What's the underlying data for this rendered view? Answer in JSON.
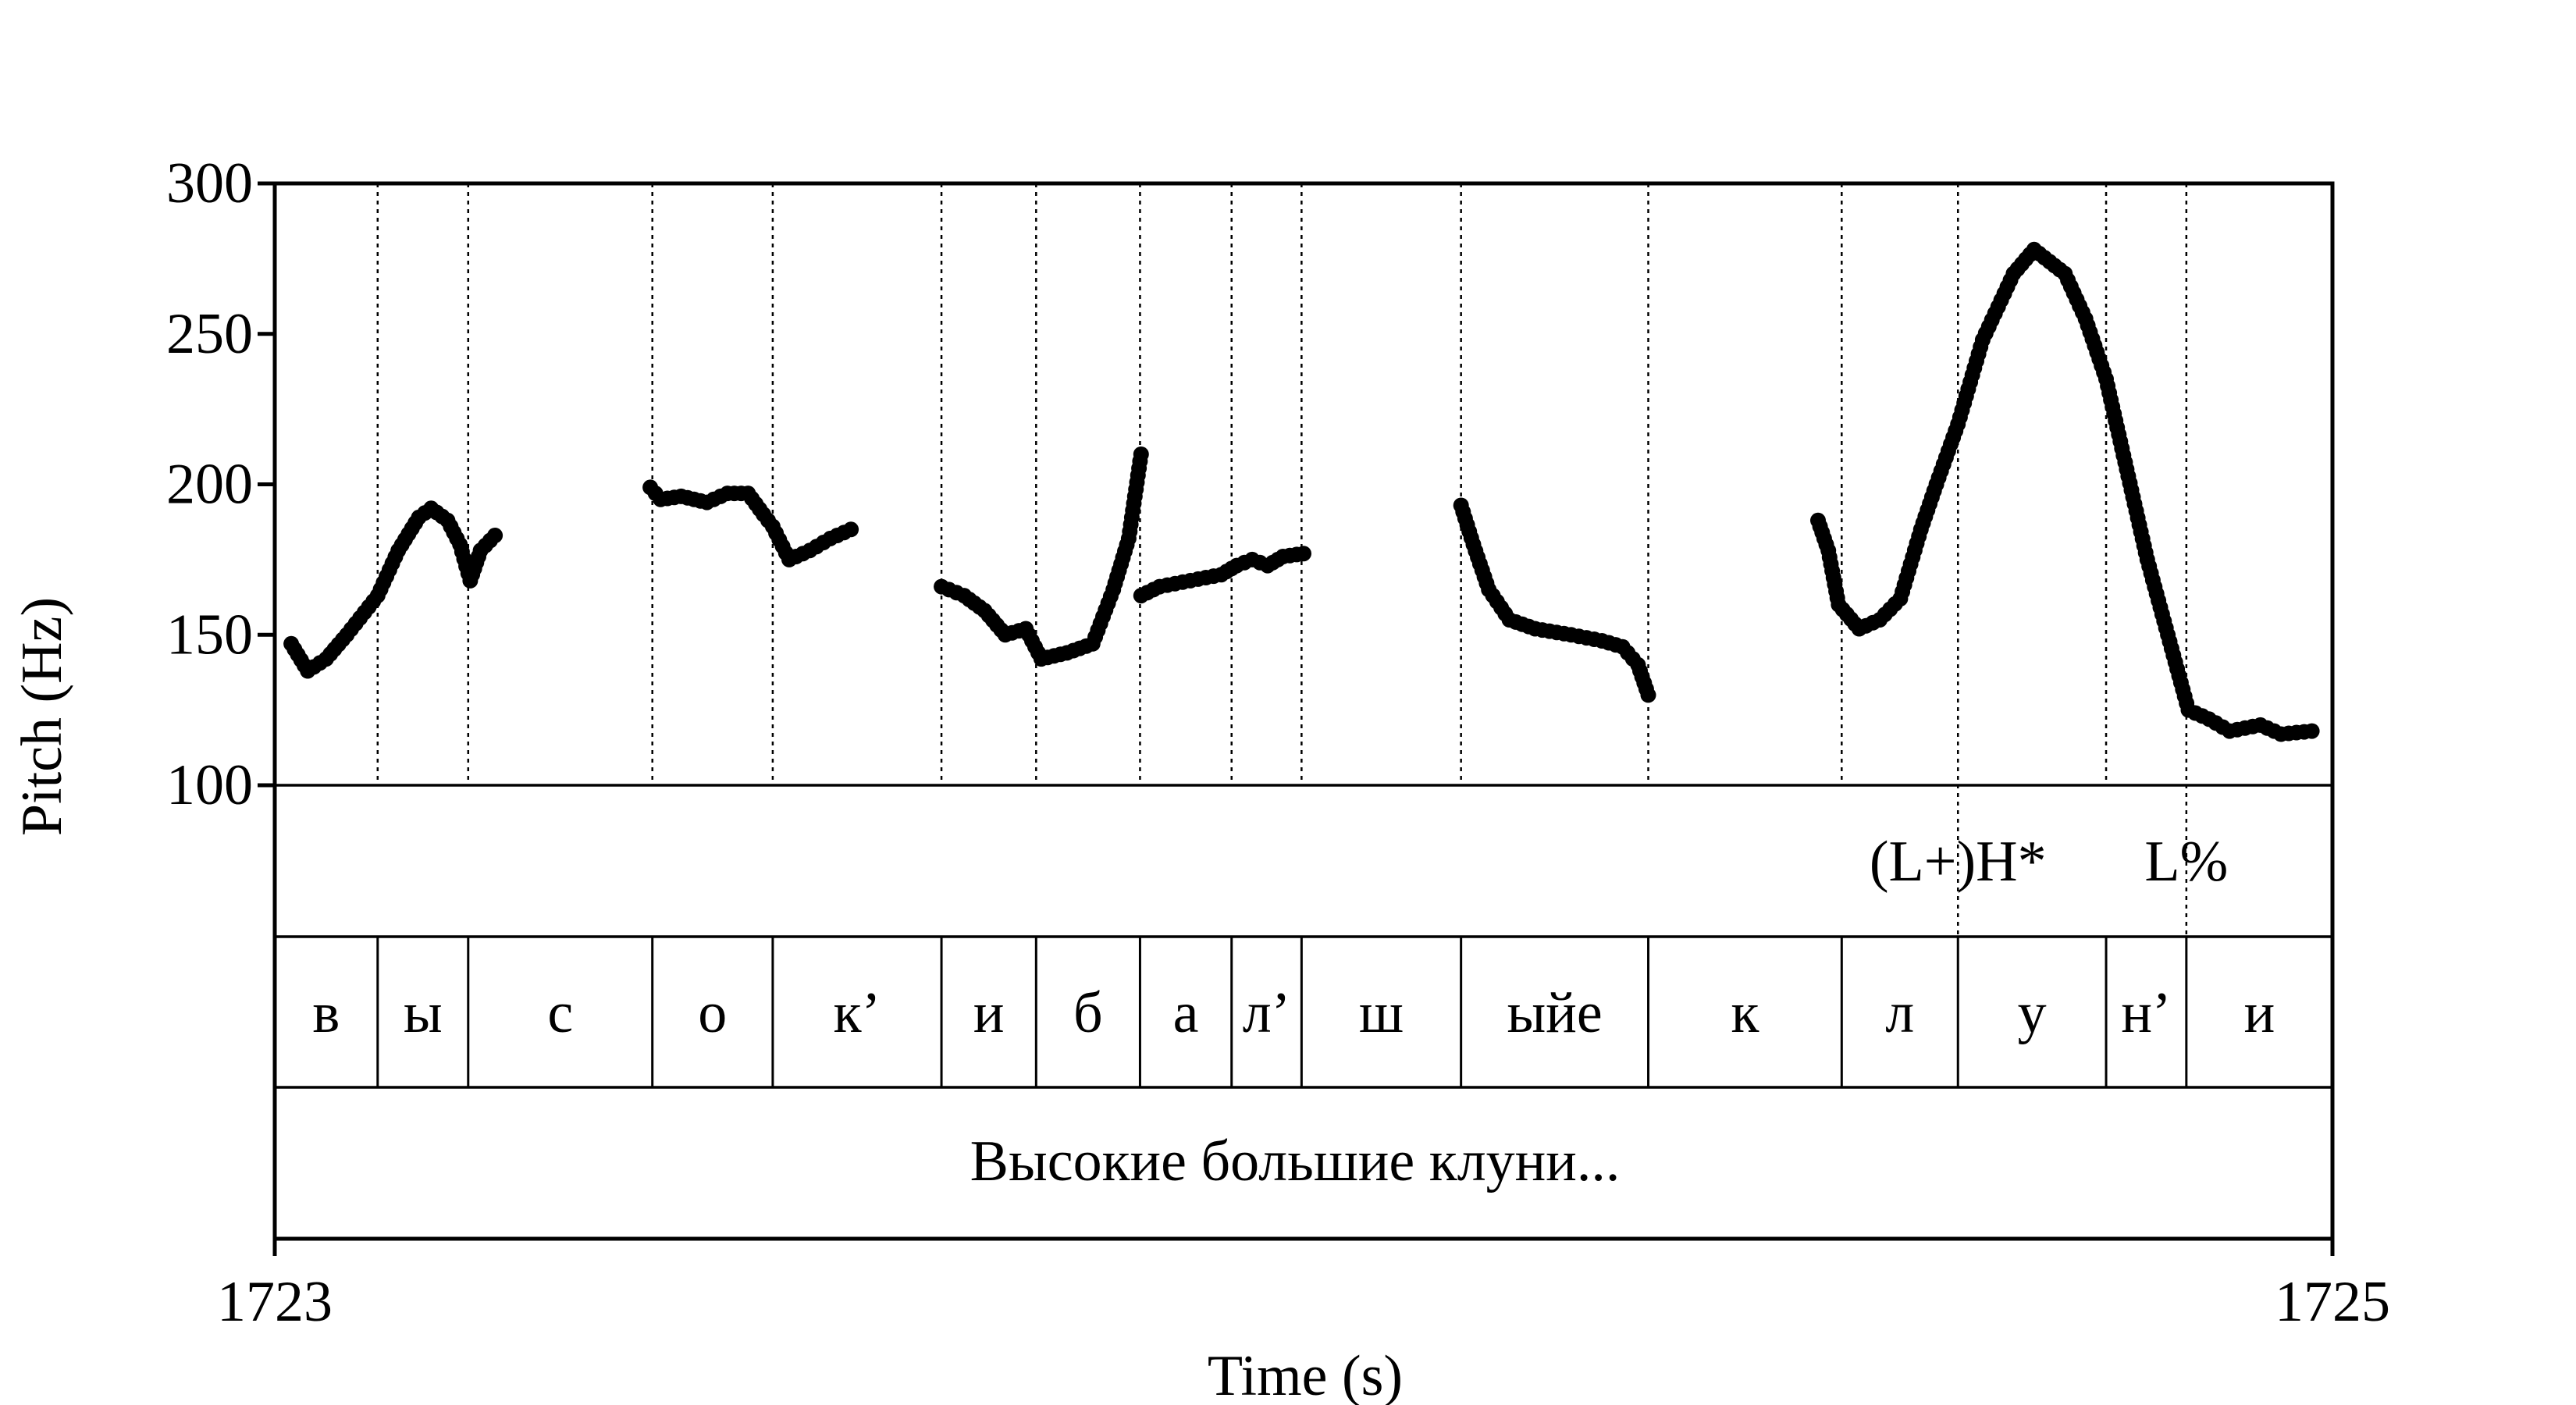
{
  "chart_data": {
    "type": "scatter",
    "title": "",
    "xlabel": "Time (s)",
    "ylabel": "Pitch (Hz)",
    "xlim": [
      1723,
      1725
    ],
    "ylim": [
      100,
      300
    ],
    "x_tick_labels": [
      "1723",
      "1725"
    ],
    "y_ticks": [
      100,
      150,
      200,
      250,
      300
    ],
    "y_tick_labels": [
      "100",
      "150",
      "200",
      "250",
      "300"
    ],
    "grid": false,
    "legend": "none",
    "marker_color": "#000000",
    "boundaries": [
      1723.1,
      1723.188,
      1723.367,
      1723.484,
      1723.648,
      1723.74,
      1723.841,
      1723.93,
      1723.998,
      1724.153,
      1724.335,
      1724.523,
      1724.636,
      1724.78,
      1724.858
    ],
    "tones": [
      {
        "label": "(L+)H*",
        "time": 1724.636
      },
      {
        "label": "L%",
        "time": 1724.858
      }
    ],
    "segments": [
      {
        "label": "в",
        "start": 1723.0,
        "end": 1723.1
      },
      {
        "label": "ы",
        "start": 1723.1,
        "end": 1723.188
      },
      {
        "label": "с",
        "start": 1723.188,
        "end": 1723.367
      },
      {
        "label": "о",
        "start": 1723.367,
        "end": 1723.484
      },
      {
        "label": "к’",
        "start": 1723.484,
        "end": 1723.648
      },
      {
        "label": "и",
        "start": 1723.648,
        "end": 1723.74
      },
      {
        "label": "б",
        "start": 1723.74,
        "end": 1723.841
      },
      {
        "label": "а",
        "start": 1723.841,
        "end": 1723.93
      },
      {
        "label": "л’",
        "start": 1723.93,
        "end": 1723.998
      },
      {
        "label": "ш",
        "start": 1723.998,
        "end": 1724.153
      },
      {
        "label": "ыйе",
        "start": 1724.153,
        "end": 1724.335
      },
      {
        "label": "к",
        "start": 1724.335,
        "end": 1724.523
      },
      {
        "label": "л",
        "start": 1724.523,
        "end": 1724.636
      },
      {
        "label": "у",
        "start": 1724.636,
        "end": 1724.78
      },
      {
        "label": "н’",
        "start": 1724.78,
        "end": 1724.858
      },
      {
        "label": "и",
        "start": 1724.858,
        "end": 1725.0
      }
    ],
    "sentence": "Высокие большие клуни...",
    "pitch_anchors": [
      [
        [
          1723.016,
          147
        ],
        [
          1723.032,
          138
        ],
        [
          1723.05,
          142
        ],
        [
          1723.07,
          150
        ],
        [
          1723.1,
          163
        ],
        [
          1723.12,
          178
        ],
        [
          1723.14,
          189
        ],
        [
          1723.152,
          192
        ],
        [
          1723.168,
          188
        ],
        [
          1723.18,
          180
        ],
        [
          1723.19,
          168
        ],
        [
          1723.2,
          178
        ],
        [
          1723.214,
          183
        ]
      ],
      [
        [
          1723.365,
          199
        ],
        [
          1723.375,
          195
        ],
        [
          1723.395,
          196
        ],
        [
          1723.42,
          194
        ],
        [
          1723.44,
          197
        ],
        [
          1723.46,
          197
        ],
        [
          1723.475,
          190
        ],
        [
          1723.484,
          186
        ],
        [
          1723.5,
          175
        ],
        [
          1723.52,
          178
        ],
        [
          1723.54,
          182
        ],
        [
          1723.56,
          185
        ]
      ],
      [
        [
          1723.648,
          166
        ],
        [
          1723.67,
          163
        ],
        [
          1723.69,
          158
        ],
        [
          1723.71,
          150
        ],
        [
          1723.73,
          152
        ],
        [
          1723.745,
          142
        ],
        [
          1723.77,
          144
        ],
        [
          1723.795,
          147
        ],
        [
          1723.815,
          165
        ],
        [
          1723.83,
          182
        ],
        [
          1723.842,
          210
        ]
      ],
      [
        [
          1723.842,
          163
        ],
        [
          1723.86,
          166
        ],
        [
          1723.89,
          168
        ],
        [
          1723.92,
          170
        ],
        [
          1723.935,
          173
        ],
        [
          1723.95,
          175
        ],
        [
          1723.965,
          173
        ],
        [
          1723.98,
          176
        ],
        [
          1724.0,
          177
        ]
      ],
      [
        [
          1724.153,
          193
        ],
        [
          1724.165,
          180
        ],
        [
          1724.18,
          165
        ],
        [
          1724.2,
          155
        ],
        [
          1724.225,
          152
        ],
        [
          1724.26,
          150
        ],
        [
          1724.29,
          148
        ],
        [
          1724.31,
          146
        ],
        [
          1724.325,
          140
        ],
        [
          1724.335,
          130
        ]
      ],
      [
        [
          1724.5,
          188
        ],
        [
          1724.51,
          178
        ],
        [
          1724.52,
          160
        ],
        [
          1724.54,
          152
        ],
        [
          1724.56,
          155
        ],
        [
          1724.58,
          162
        ],
        [
          1724.6,
          185
        ],
        [
          1724.615,
          200
        ],
        [
          1724.636,
          220
        ],
        [
          1724.66,
          248
        ],
        [
          1724.69,
          270
        ],
        [
          1724.71,
          278
        ],
        [
          1724.74,
          270
        ],
        [
          1724.76,
          255
        ],
        [
          1724.78,
          235
        ],
        [
          1724.8,
          205
        ],
        [
          1724.82,
          175
        ],
        [
          1724.84,
          150
        ],
        [
          1724.86,
          125
        ],
        [
          1724.88,
          122
        ],
        [
          1724.9,
          118
        ],
        [
          1724.93,
          120
        ],
        [
          1724.95,
          117
        ],
        [
          1724.98,
          118
        ]
      ]
    ]
  }
}
